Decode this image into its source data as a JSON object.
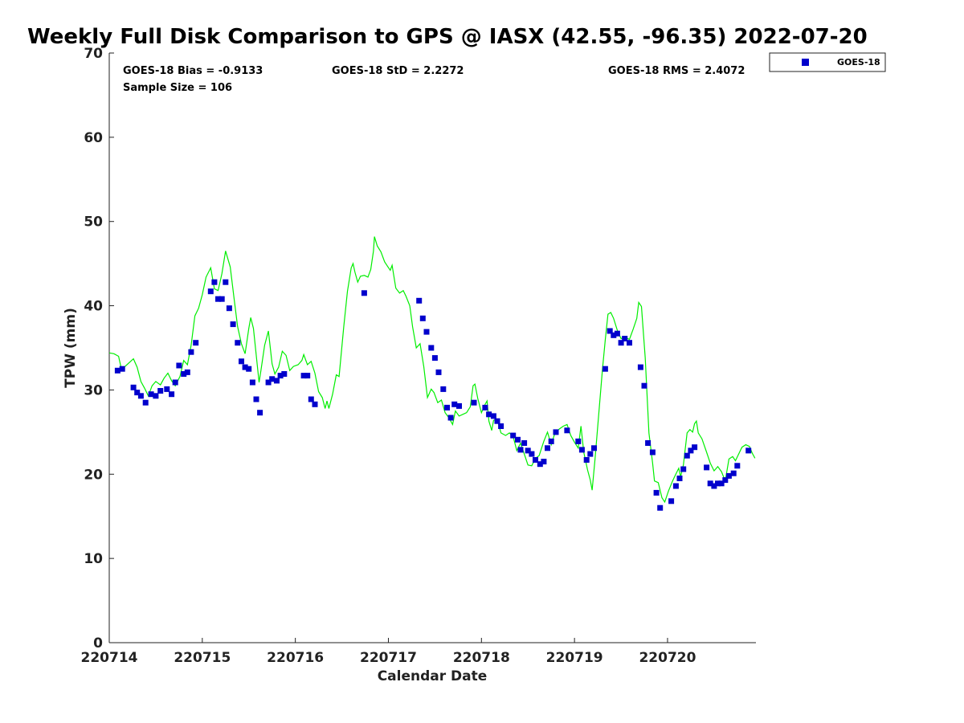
{
  "chart_data": {
    "type": "scatter",
    "title": "Weekly Full Disk Comparison to GPS @ IASX (42.55, -96.35) 2022-07-20",
    "xlabel": "Calendar Date",
    "ylabel": "TPW (mm)",
    "xlim": [
      0,
      6.95
    ],
    "ylim": [
      0,
      70
    ],
    "x_ticks": [
      {
        "value": 0,
        "label": "220714"
      },
      {
        "value": 1,
        "label": "220715"
      },
      {
        "value": 2,
        "label": "220716"
      },
      {
        "value": 3,
        "label": "220717"
      },
      {
        "value": 4,
        "label": "220718"
      },
      {
        "value": 5,
        "label": "220719"
      },
      {
        "value": 6,
        "label": "220720"
      }
    ],
    "y_ticks": [
      0,
      10,
      20,
      30,
      40,
      50,
      60,
      70
    ],
    "x_units": "days after 220714",
    "grid": false,
    "legend_position": "top-right",
    "stats": {
      "bias": "GOES-18 Bias = -0.9133",
      "std": "GOES-18 StD = 2.2272",
      "rms": "GOES-18 RMS = 2.4072",
      "sample": "Sample Size = 106"
    },
    "series": [
      {
        "name": "GOES-18",
        "kind": "scatter",
        "color": "#0000cc",
        "marker": "square",
        "points": [
          [
            0.09,
            32.3
          ],
          [
            0.14,
            32.5
          ],
          [
            0.26,
            30.3
          ],
          [
            0.3,
            29.7
          ],
          [
            0.34,
            29.3
          ],
          [
            0.39,
            28.5
          ],
          [
            0.45,
            29.5
          ],
          [
            0.5,
            29.3
          ],
          [
            0.55,
            29.9
          ],
          [
            0.62,
            30.1
          ],
          [
            0.67,
            29.5
          ],
          [
            0.71,
            30.9
          ],
          [
            0.75,
            32.9
          ],
          [
            0.8,
            31.9
          ],
          [
            0.84,
            32.1
          ],
          [
            0.88,
            34.5
          ],
          [
            0.93,
            35.6
          ],
          [
            1.09,
            41.7
          ],
          [
            1.13,
            42.8
          ],
          [
            1.17,
            40.8
          ],
          [
            1.21,
            40.8
          ],
          [
            1.25,
            42.8
          ],
          [
            1.29,
            39.7
          ],
          [
            1.33,
            37.8
          ],
          [
            1.38,
            35.6
          ],
          [
            1.42,
            33.4
          ],
          [
            1.46,
            32.7
          ],
          [
            1.5,
            32.5
          ],
          [
            1.54,
            30.9
          ],
          [
            1.58,
            28.9
          ],
          [
            1.62,
            27.3
          ],
          [
            1.71,
            30.9
          ],
          [
            1.75,
            31.3
          ],
          [
            1.8,
            31.1
          ],
          [
            1.84,
            31.7
          ],
          [
            1.88,
            31.9
          ],
          [
            2.09,
            31.7
          ],
          [
            2.13,
            31.7
          ],
          [
            2.17,
            28.9
          ],
          [
            2.21,
            28.3
          ],
          [
            2.74,
            41.5
          ],
          [
            3.33,
            40.6
          ],
          [
            3.37,
            38.5
          ],
          [
            3.41,
            36.9
          ],
          [
            3.46,
            35.0
          ],
          [
            3.5,
            33.8
          ],
          [
            3.54,
            32.1
          ],
          [
            3.59,
            30.1
          ],
          [
            3.63,
            27.9
          ],
          [
            3.67,
            26.7
          ],
          [
            3.71,
            28.3
          ],
          [
            3.76,
            28.1
          ],
          [
            3.92,
            28.5
          ],
          [
            4.04,
            27.9
          ],
          [
            4.08,
            27.1
          ],
          [
            4.13,
            26.9
          ],
          [
            4.17,
            26.3
          ],
          [
            4.21,
            25.7
          ],
          [
            4.34,
            24.6
          ],
          [
            4.39,
            24.1
          ],
          [
            4.42,
            22.9
          ],
          [
            4.46,
            23.7
          ],
          [
            4.5,
            22.8
          ],
          [
            4.54,
            22.4
          ],
          [
            4.58,
            21.7
          ],
          [
            4.63,
            21.2
          ],
          [
            4.67,
            21.5
          ],
          [
            4.71,
            23.1
          ],
          [
            4.75,
            23.9
          ],
          [
            4.8,
            25.0
          ],
          [
            4.92,
            25.2
          ],
          [
            5.04,
            23.9
          ],
          [
            5.08,
            22.9
          ],
          [
            5.13,
            21.7
          ],
          [
            5.17,
            22.4
          ],
          [
            5.21,
            23.1
          ],
          [
            5.33,
            32.5
          ],
          [
            5.38,
            37.0
          ],
          [
            5.42,
            36.5
          ],
          [
            5.46,
            36.7
          ],
          [
            5.5,
            35.6
          ],
          [
            5.54,
            36.1
          ],
          [
            5.59,
            35.6
          ],
          [
            5.71,
            32.7
          ],
          [
            5.75,
            30.5
          ],
          [
            5.79,
            23.7
          ],
          [
            5.84,
            22.6
          ],
          [
            5.88,
            17.8
          ],
          [
            5.92,
            16.0
          ],
          [
            6.04,
            16.8
          ],
          [
            6.09,
            18.6
          ],
          [
            6.13,
            19.5
          ],
          [
            6.17,
            20.6
          ],
          [
            6.21,
            22.2
          ],
          [
            6.25,
            22.8
          ],
          [
            6.29,
            23.2
          ],
          [
            6.42,
            20.8
          ],
          [
            6.46,
            18.9
          ],
          [
            6.5,
            18.6
          ],
          [
            6.54,
            18.9
          ],
          [
            6.58,
            18.9
          ],
          [
            6.62,
            19.3
          ],
          [
            6.66,
            19.8
          ],
          [
            6.71,
            20.1
          ],
          [
            6.75,
            21.0
          ],
          [
            6.87,
            22.8
          ]
        ]
      },
      {
        "name": "",
        "kind": "line",
        "color": "#00ee00",
        "points": [
          [
            0.0,
            34.4
          ],
          [
            0.05,
            34.3
          ],
          [
            0.1,
            34.0
          ],
          [
            0.13,
            32.5
          ],
          [
            0.17,
            32.8
          ],
          [
            0.22,
            33.3
          ],
          [
            0.26,
            33.7
          ],
          [
            0.3,
            32.7
          ],
          [
            0.34,
            31.0
          ],
          [
            0.38,
            30.2
          ],
          [
            0.42,
            29.3
          ],
          [
            0.46,
            30.5
          ],
          [
            0.5,
            31.0
          ],
          [
            0.55,
            30.6
          ],
          [
            0.59,
            31.4
          ],
          [
            0.63,
            32.0
          ],
          [
            0.67,
            31.1
          ],
          [
            0.71,
            30.5
          ],
          [
            0.76,
            31.6
          ],
          [
            0.8,
            33.5
          ],
          [
            0.84,
            33.0
          ],
          [
            0.88,
            35.3
          ],
          [
            0.92,
            38.8
          ],
          [
            0.96,
            39.7
          ],
          [
            1.0,
            41.3
          ],
          [
            1.04,
            43.4
          ],
          [
            1.09,
            44.5
          ],
          [
            1.13,
            42.0
          ],
          [
            1.17,
            41.8
          ],
          [
            1.21,
            43.8
          ],
          [
            1.25,
            46.5
          ],
          [
            1.3,
            44.6
          ],
          [
            1.34,
            41.0
          ],
          [
            1.38,
            37.5
          ],
          [
            1.42,
            35.5
          ],
          [
            1.46,
            34.3
          ],
          [
            1.5,
            37.3
          ],
          [
            1.52,
            38.6
          ],
          [
            1.55,
            37.3
          ],
          [
            1.59,
            33.0
          ],
          [
            1.61,
            30.9
          ],
          [
            1.63,
            32.3
          ],
          [
            1.67,
            35.3
          ],
          [
            1.71,
            37.0
          ],
          [
            1.75,
            33.1
          ],
          [
            1.78,
            31.9
          ],
          [
            1.82,
            32.7
          ],
          [
            1.86,
            34.6
          ],
          [
            1.9,
            34.1
          ],
          [
            1.94,
            32.3
          ],
          [
            1.98,
            32.8
          ],
          [
            2.03,
            33.0
          ],
          [
            2.07,
            33.5
          ],
          [
            2.09,
            34.2
          ],
          [
            2.13,
            33.0
          ],
          [
            2.17,
            33.4
          ],
          [
            2.21,
            32.0
          ],
          [
            2.25,
            29.8
          ],
          [
            2.29,
            29.1
          ],
          [
            2.32,
            27.8
          ],
          [
            2.34,
            28.7
          ],
          [
            2.36,
            27.8
          ],
          [
            2.4,
            29.5
          ],
          [
            2.44,
            31.8
          ],
          [
            2.47,
            31.6
          ],
          [
            2.52,
            37.5
          ],
          [
            2.56,
            41.7
          ],
          [
            2.6,
            44.5
          ],
          [
            2.62,
            45.0
          ],
          [
            2.64,
            44.0
          ],
          [
            2.67,
            42.8
          ],
          [
            2.7,
            43.5
          ],
          [
            2.74,
            43.6
          ],
          [
            2.78,
            43.4
          ],
          [
            2.81,
            44.3
          ],
          [
            2.84,
            46.5
          ],
          [
            2.85,
            48.2
          ],
          [
            2.88,
            47.1
          ],
          [
            2.92,
            46.4
          ],
          [
            2.96,
            45.2
          ],
          [
            2.99,
            44.7
          ],
          [
            3.02,
            44.2
          ],
          [
            3.04,
            44.8
          ],
          [
            3.08,
            42.1
          ],
          [
            3.12,
            41.5
          ],
          [
            3.16,
            41.8
          ],
          [
            3.19,
            41.1
          ],
          [
            3.23,
            40.0
          ],
          [
            3.26,
            37.5
          ],
          [
            3.3,
            35.0
          ],
          [
            3.34,
            35.5
          ],
          [
            3.38,
            32.8
          ],
          [
            3.42,
            29.1
          ],
          [
            3.46,
            30.1
          ],
          [
            3.49,
            29.7
          ],
          [
            3.53,
            28.5
          ],
          [
            3.57,
            28.8
          ],
          [
            3.61,
            27.3
          ],
          [
            3.65,
            26.7
          ],
          [
            3.69,
            25.9
          ],
          [
            3.72,
            27.5
          ],
          [
            3.76,
            26.9
          ],
          [
            3.8,
            27.1
          ],
          [
            3.84,
            27.3
          ],
          [
            3.88,
            28.0
          ],
          [
            3.91,
            30.5
          ],
          [
            3.93,
            30.7
          ],
          [
            3.96,
            29.0
          ],
          [
            4.0,
            27.3
          ],
          [
            4.04,
            28.3
          ],
          [
            4.06,
            28.7
          ],
          [
            4.08,
            26.3
          ],
          [
            4.11,
            25.2
          ],
          [
            4.13,
            26.4
          ],
          [
            4.17,
            26.5
          ],
          [
            4.21,
            24.9
          ],
          [
            4.26,
            24.6
          ],
          [
            4.3,
            24.9
          ],
          [
            4.34,
            24.5
          ],
          [
            4.38,
            22.8
          ],
          [
            4.42,
            23.7
          ],
          [
            4.46,
            22.4
          ],
          [
            4.5,
            21.1
          ],
          [
            4.54,
            21.0
          ],
          [
            4.58,
            21.9
          ],
          [
            4.62,
            22.2
          ],
          [
            4.67,
            23.9
          ],
          [
            4.71,
            25.0
          ],
          [
            4.75,
            23.5
          ],
          [
            4.79,
            24.9
          ],
          [
            4.84,
            25.4
          ],
          [
            4.88,
            25.7
          ],
          [
            4.92,
            25.9
          ],
          [
            4.96,
            24.6
          ],
          [
            5.0,
            23.8
          ],
          [
            5.04,
            23.1
          ],
          [
            5.07,
            25.7
          ],
          [
            5.1,
            22.6
          ],
          [
            5.14,
            20.5
          ],
          [
            5.17,
            19.3
          ],
          [
            5.19,
            18.1
          ],
          [
            5.22,
            21.7
          ],
          [
            5.26,
            27.1
          ],
          [
            5.3,
            32.4
          ],
          [
            5.33,
            35.9
          ],
          [
            5.36,
            39.0
          ],
          [
            5.39,
            39.2
          ],
          [
            5.42,
            38.5
          ],
          [
            5.46,
            37.1
          ],
          [
            5.5,
            36.1
          ],
          [
            5.54,
            36.3
          ],
          [
            5.59,
            36.0
          ],
          [
            5.63,
            37.2
          ],
          [
            5.67,
            38.5
          ],
          [
            5.69,
            40.4
          ],
          [
            5.72,
            39.9
          ],
          [
            5.76,
            33.8
          ],
          [
            5.8,
            24.9
          ],
          [
            5.84,
            21.3
          ],
          [
            5.86,
            19.2
          ],
          [
            5.9,
            19.0
          ],
          [
            5.94,
            17.2
          ],
          [
            5.97,
            16.7
          ],
          [
            6.01,
            18.0
          ],
          [
            6.05,
            19.1
          ],
          [
            6.08,
            19.8
          ],
          [
            6.12,
            20.7
          ],
          [
            6.14,
            19.7
          ],
          [
            6.17,
            21.1
          ],
          [
            6.21,
            24.9
          ],
          [
            6.24,
            25.3
          ],
          [
            6.27,
            25.0
          ],
          [
            6.29,
            26.0
          ],
          [
            6.31,
            26.3
          ],
          [
            6.33,
            24.9
          ],
          [
            6.37,
            24.2
          ],
          [
            6.42,
            22.6
          ],
          [
            6.46,
            21.3
          ],
          [
            6.5,
            20.4
          ],
          [
            6.54,
            20.9
          ],
          [
            6.58,
            20.3
          ],
          [
            6.62,
            19.2
          ],
          [
            6.66,
            21.8
          ],
          [
            6.7,
            22.1
          ],
          [
            6.73,
            21.6
          ],
          [
            6.76,
            22.3
          ],
          [
            6.8,
            23.2
          ],
          [
            6.84,
            23.5
          ],
          [
            6.88,
            23.3
          ],
          [
            6.91,
            22.5
          ],
          [
            6.94,
            21.9
          ]
        ]
      }
    ]
  }
}
